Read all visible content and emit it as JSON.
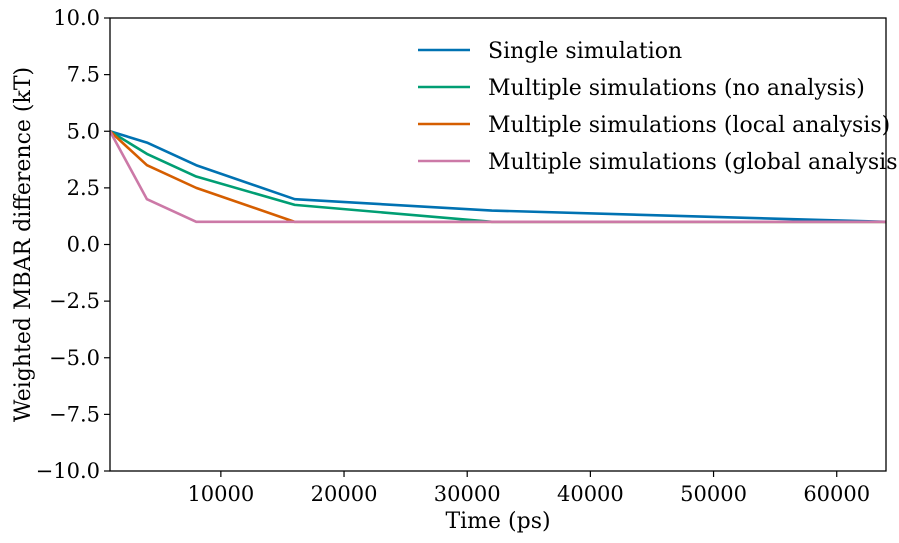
{
  "chart_data": {
    "type": "line",
    "title": "",
    "xlabel": "Time (ps)",
    "ylabel": "Weighted MBAR difference (kT)",
    "xlim": [
      1000,
      64000
    ],
    "ylim": [
      -10.0,
      10.0
    ],
    "xticks": [
      10000,
      20000,
      30000,
      40000,
      50000,
      60000
    ],
    "xtick_labels": [
      "10000",
      "20000",
      "30000",
      "40000",
      "50000",
      "60000"
    ],
    "yticks": [
      -10.0,
      -7.5,
      -5.0,
      -2.5,
      0.0,
      2.5,
      5.0,
      7.5,
      10.0
    ],
    "ytick_labels": [
      "−10.0",
      "−7.5",
      "−5.0",
      "−2.5",
      "0.0",
      "2.5",
      "5.0",
      "7.5",
      "10.0"
    ],
    "grid": false,
    "legend_position": "top-right",
    "series": [
      {
        "name": "Single simulation",
        "color": "#0072B2",
        "x": [
          1000,
          4000,
          8000,
          16000,
          32000,
          64000
        ],
        "y": [
          5.0,
          4.5,
          3.5,
          2.0,
          1.5,
          1.0
        ]
      },
      {
        "name": "Multiple simulations (no analysis)",
        "color": "#009E73",
        "x": [
          1000,
          4000,
          8000,
          16000,
          32000,
          64000
        ],
        "y": [
          5.0,
          4.0,
          3.0,
          1.75,
          1.0,
          1.0
        ]
      },
      {
        "name": "Multiple simulations (local analysis)",
        "color": "#D55E00",
        "x": [
          1000,
          4000,
          8000,
          16000,
          32000,
          64000
        ],
        "y": [
          5.0,
          3.5,
          2.5,
          1.0,
          1.0,
          1.0
        ]
      },
      {
        "name": "Multiple simulations (global analysis)",
        "color": "#CC79A7",
        "x": [
          1000,
          4000,
          8000,
          16000,
          32000,
          64000
        ],
        "y": [
          5.0,
          2.0,
          1.0,
          1.0,
          1.0,
          1.0
        ]
      }
    ]
  }
}
